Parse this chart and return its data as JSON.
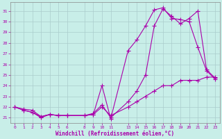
{
  "xlabel": "Windchill (Refroidissement éolien,°C)",
  "background_color": "#c8eee8",
  "line_color": "#aa00aa",
  "grid_color": "#aacccc",
  "x_ticks": [
    0,
    1,
    2,
    3,
    4,
    5,
    6,
    8,
    9,
    10,
    11,
    13,
    14,
    15,
    16,
    17,
    18,
    19,
    20,
    21,
    22,
    23
  ],
  "ylim": [
    20.5,
    31.8
  ],
  "xlim": [
    -0.5,
    23.5
  ],
  "yticks": [
    21,
    22,
    23,
    24,
    25,
    26,
    27,
    28,
    29,
    30,
    31
  ],
  "series1_x": [
    0,
    1,
    2,
    3,
    4,
    5,
    6,
    8,
    9,
    10,
    11,
    13,
    14,
    15,
    16,
    17,
    18,
    19,
    20,
    21,
    22,
    23
  ],
  "series1_y": [
    22.0,
    21.8,
    21.7,
    21.1,
    21.3,
    21.2,
    21.2,
    21.2,
    21.3,
    24.0,
    20.9,
    27.3,
    28.3,
    29.6,
    31.1,
    31.3,
    30.3,
    30.2,
    30.0,
    27.6,
    25.4,
    24.6
  ],
  "series2_x": [
    0,
    1,
    2,
    3,
    4,
    5,
    6,
    8,
    9,
    10,
    11,
    13,
    14,
    15,
    16,
    17,
    18,
    19,
    20,
    21,
    22,
    23
  ],
  "series2_y": [
    22.0,
    21.7,
    21.5,
    21.0,
    21.3,
    21.2,
    21.2,
    21.2,
    21.4,
    22.2,
    21.0,
    22.5,
    23.5,
    25.0,
    29.6,
    31.2,
    30.5,
    29.8,
    30.3,
    31.0,
    25.5,
    24.7
  ],
  "series3_x": [
    0,
    1,
    2,
    3,
    4,
    5,
    6,
    8,
    9,
    10,
    11,
    13,
    14,
    15,
    16,
    17,
    18,
    19,
    20,
    21,
    22,
    23
  ],
  "series3_y": [
    22.0,
    21.7,
    21.5,
    21.1,
    21.3,
    21.2,
    21.2,
    21.2,
    21.3,
    22.0,
    21.2,
    22.0,
    22.5,
    23.0,
    23.5,
    24.0,
    24.0,
    24.5,
    24.5,
    24.5,
    24.8,
    24.8
  ]
}
